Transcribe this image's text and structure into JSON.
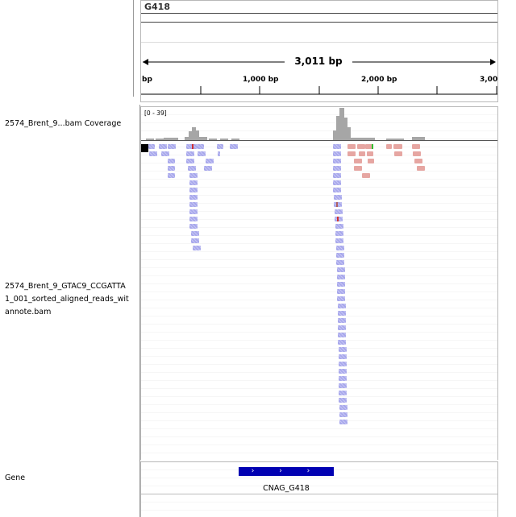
{
  "ruler": {
    "chromosome": "G418",
    "span_label": "3,011 bp",
    "ticks": [
      "bp",
      "1,000 bp",
      "2,000 bp",
      "3,00"
    ]
  },
  "tracks": {
    "coverage": {
      "label": "2574_Brent_9...bam Coverage",
      "range": "[0 - 39]"
    },
    "alignment": {
      "label_lines": [
        "2574_Brent_9_GTAC9_CCGATTA",
        "1_001_sorted_aligned_reads_wit",
        "annote.bam"
      ]
    },
    "gene": {
      "label": "Gene",
      "feature_name": "CNAG_G418",
      "strand_arrows": "› › › ›"
    }
  },
  "colors": {
    "read_forward": "#a8a8ec",
    "read_reverse": "#e6a6a2",
    "coverage": "#a6a6a6",
    "gene_feature": "#0000b2",
    "mismatch_red": "#d03030",
    "mismatch_green": "#30c030"
  }
}
